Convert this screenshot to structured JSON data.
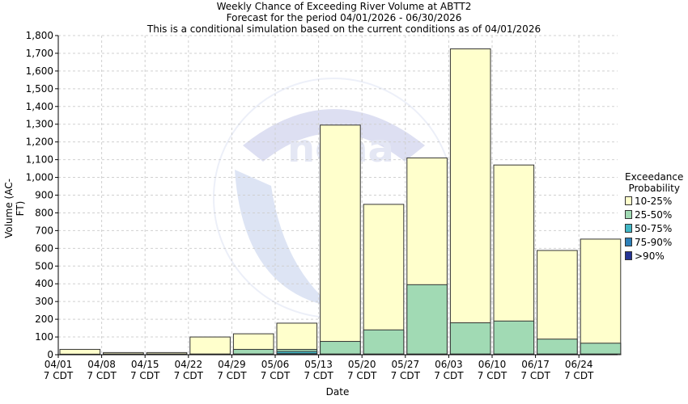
{
  "header": {
    "title": "Weekly Chance of Exceeding River Volume at ABTT2",
    "subtitle": "Forecast for the period 04/01/2026 - 06/30/2026",
    "note": "This is a conditional simulation based on the current conditions as of 04/01/2026"
  },
  "chart_data": {
    "type": "bar",
    "title": "Weekly Chance of Exceeding River Volume at ABTT2",
    "xlabel": "Date",
    "ylabel": "Volume (AC-FT)",
    "ylim": [
      0,
      1800
    ],
    "yticks": [
      0,
      100,
      200,
      300,
      400,
      500,
      600,
      700,
      800,
      900,
      1000,
      1100,
      1200,
      1300,
      1400,
      1500,
      1600,
      1700,
      1800
    ],
    "ytick_labels": [
      "0",
      "100",
      "200",
      "300",
      "400",
      "500",
      "600",
      "700",
      "800",
      "900",
      "1,000",
      "1,100",
      "1,200",
      "1,300",
      "1,400",
      "1,500",
      "1,600",
      "1,700",
      "1,800"
    ],
    "categories": [
      "04/01",
      "04/08",
      "04/15",
      "04/22",
      "04/29",
      "05/06",
      "05/13",
      "05/20",
      "05/27",
      "06/03",
      "06/10",
      "06/17",
      "06/24"
    ],
    "tick_sublabel": "7 CDT",
    "grid": true,
    "legend_placement": "right",
    "legend_title_line1": "Exceedance",
    "legend_title_line2": "Probability",
    "series": [
      {
        "name": "10-25%",
        "color": "#ffffcc",
        "values": [
          30,
          12,
          12,
          100,
          118,
          178,
          1295,
          848,
          1110,
          1725,
          1070,
          588,
          652
        ]
      },
      {
        "name": "25-50%",
        "color": "#a1dab4",
        "values": [
          3,
          4,
          4,
          4,
          30,
          30,
          75,
          140,
          395,
          180,
          190,
          88,
          65
        ]
      },
      {
        "name": "50-75%",
        "color": "#41b6c4",
        "values": [
          1,
          1,
          1,
          1,
          4,
          18,
          4,
          4,
          4,
          4,
          4,
          4,
          4
        ]
      },
      {
        "name": "75-90%",
        "color": "#2c7fb8",
        "values": [
          0,
          0,
          0,
          0,
          2,
          6,
          2,
          2,
          2,
          2,
          2,
          2,
          2
        ]
      },
      {
        "name": ">90%",
        "color": "#253494",
        "values": [
          0,
          0,
          0,
          0,
          1,
          2,
          1,
          1,
          1,
          1,
          1,
          1,
          1
        ]
      }
    ]
  }
}
